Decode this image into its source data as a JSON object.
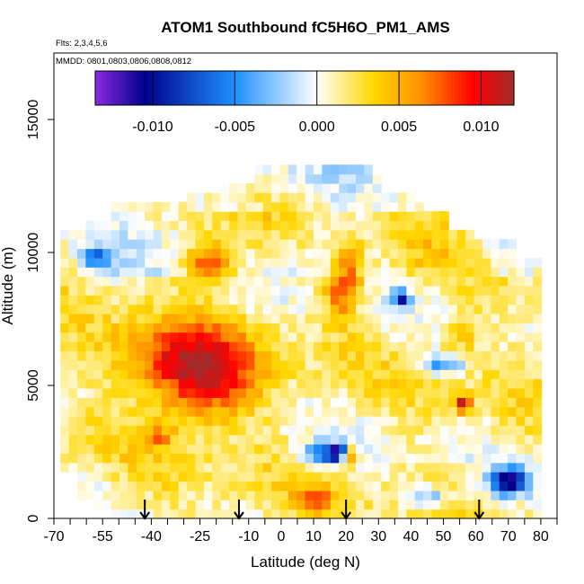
{
  "chart_data": {
    "type": "heatmap",
    "title": "ATOM1 Southbound fC5H6O_PM1_AMS",
    "annotations": [
      "Flts: 2,3,4,5,6",
      "MMDD: 0801,0803,0806,0808,0812"
    ],
    "xlabel": "Latitude (deg N)",
    "ylabel": "Altitude (m)",
    "xlim": [
      -70,
      85
    ],
    "ylim": [
      0,
      17500
    ],
    "x_ticks": [
      -70,
      -55,
      -40,
      -25,
      -10,
      0,
      10,
      20,
      30,
      40,
      50,
      60,
      70,
      80
    ],
    "x_tick_labels": [
      "-70",
      "-55",
      "-40",
      "-25",
      "-10",
      "0",
      "10",
      "20",
      "30",
      "40",
      "50",
      "60",
      "70",
      "80"
    ],
    "y_ticks": [
      0,
      5000,
      10000,
      15000
    ],
    "y_tick_labels": [
      "0",
      "5000",
      "10000",
      "15000"
    ],
    "colorbar": {
      "range": [
        -0.0135,
        0.012
      ],
      "ticks": [
        -0.01,
        -0.005,
        0,
        0.005,
        0.01
      ],
      "tick_labels": [
        "-0.010",
        "-0.005",
        "0.000",
        "0.005",
        "0.010"
      ],
      "colors": [
        "#8a2be2",
        "#00008b",
        "#1e90ff",
        "#ffffff",
        "#ffd700",
        "#ff8c00",
        "#ff0000",
        "#a52a2a"
      ]
    },
    "profile_latitudes": [
      -42,
      -13,
      20,
      61
    ],
    "blobs": [
      {
        "lat": -25,
        "alt": 5200,
        "value": 0.0095,
        "sx": 12,
        "sy": 1100
      },
      {
        "lat": -35,
        "alt": 6300,
        "value": 0.004,
        "sx": 14,
        "sy": 800
      },
      {
        "lat": -22,
        "alt": 9600,
        "value": 0.007,
        "sx": 5,
        "sy": 600
      },
      {
        "lat": 21,
        "alt": 9300,
        "value": 0.006,
        "sx": 3,
        "sy": 1000
      },
      {
        "lat": 17,
        "alt": 8400,
        "value": 0.004,
        "sx": 3,
        "sy": 700
      },
      {
        "lat": -57,
        "alt": 9800,
        "value": -0.006,
        "sx": 3,
        "sy": 300
      },
      {
        "lat": 37,
        "alt": 8300,
        "value": -0.01,
        "sx": 2,
        "sy": 200
      },
      {
        "lat": 70,
        "alt": 1400,
        "value": -0.012,
        "sx": 4,
        "sy": 350
      },
      {
        "lat": 18,
        "alt": 2500,
        "value": -0.01,
        "sx": 3,
        "sy": 250
      },
      {
        "lat": 21,
        "alt": 2400,
        "value": 0.01,
        "sx": 2,
        "sy": 250
      },
      {
        "lat": 12,
        "alt": 2400,
        "value": -0.006,
        "sx": 5,
        "sy": 300
      },
      {
        "lat": 56,
        "alt": 4300,
        "value": 0.009,
        "sx": 2,
        "sy": 250
      },
      {
        "lat": 50,
        "alt": 5800,
        "value": -0.006,
        "sx": 4,
        "sy": 250
      },
      {
        "lat": 45,
        "alt": 800,
        "value": -0.005,
        "sx": 5,
        "sy": 300
      },
      {
        "lat": 10,
        "alt": 700,
        "value": 0.006,
        "sx": 4,
        "sy": 300
      },
      {
        "lat": -38,
        "alt": 3100,
        "value": 0.005,
        "sx": 3,
        "sy": 250
      },
      {
        "lat": 55,
        "alt": 7000,
        "value": 0.004,
        "sx": 4,
        "sy": 500
      }
    ]
  }
}
